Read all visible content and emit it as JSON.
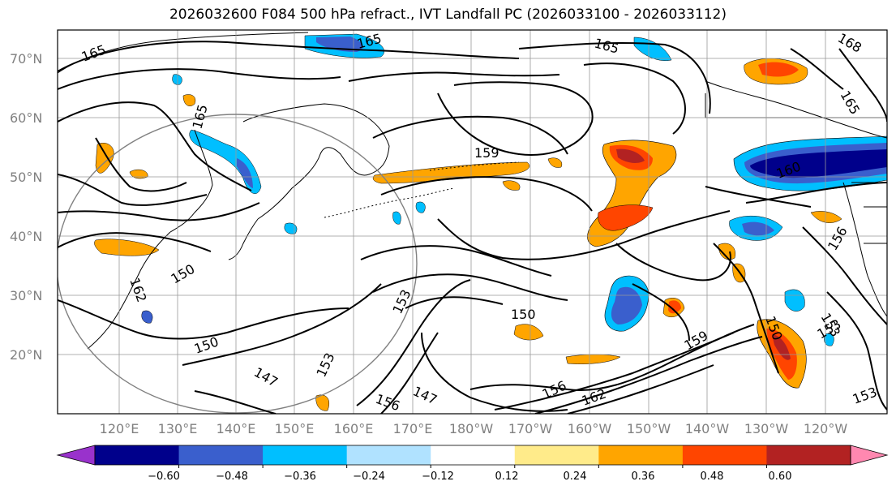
{
  "title": "2026032600 F084 500 hPa refract., IVT Landfall PC (2026033100 - 2026033112)",
  "map": {
    "lat_labels": [
      "70°N",
      "60°N",
      "50°N",
      "40°N",
      "30°N",
      "20°N"
    ],
    "lon_labels": [
      "120°E",
      "130°E",
      "140°E",
      "150°E",
      "160°E",
      "170°E",
      "180°W",
      "170°W",
      "160°W",
      "150°W",
      "140°W",
      "130°W",
      "120°W"
    ],
    "contour_labels": [
      "165",
      "165",
      "165",
      "168",
      "165",
      "165",
      "159",
      "160",
      "162",
      "156",
      "150",
      "150",
      "153",
      "153",
      "153",
      "153",
      "147",
      "147",
      "150",
      "156",
      "156",
      "162",
      "153",
      "159",
      "150"
    ]
  },
  "colorbar": {
    "ticks": [
      "−0.60",
      "−0.48",
      "−0.36",
      "−0.24",
      "−0.12",
      "0.12",
      "0.24",
      "0.36",
      "0.48",
      "0.60"
    ],
    "colors": [
      "#9932cc",
      "#00008b",
      "#3a5fcd",
      "#00bfff",
      "#b0e2ff",
      "#ffffff",
      "#ffeb8a",
      "#ffa500",
      "#ff4500",
      "#b22222",
      "#ff88b0"
    ]
  }
}
